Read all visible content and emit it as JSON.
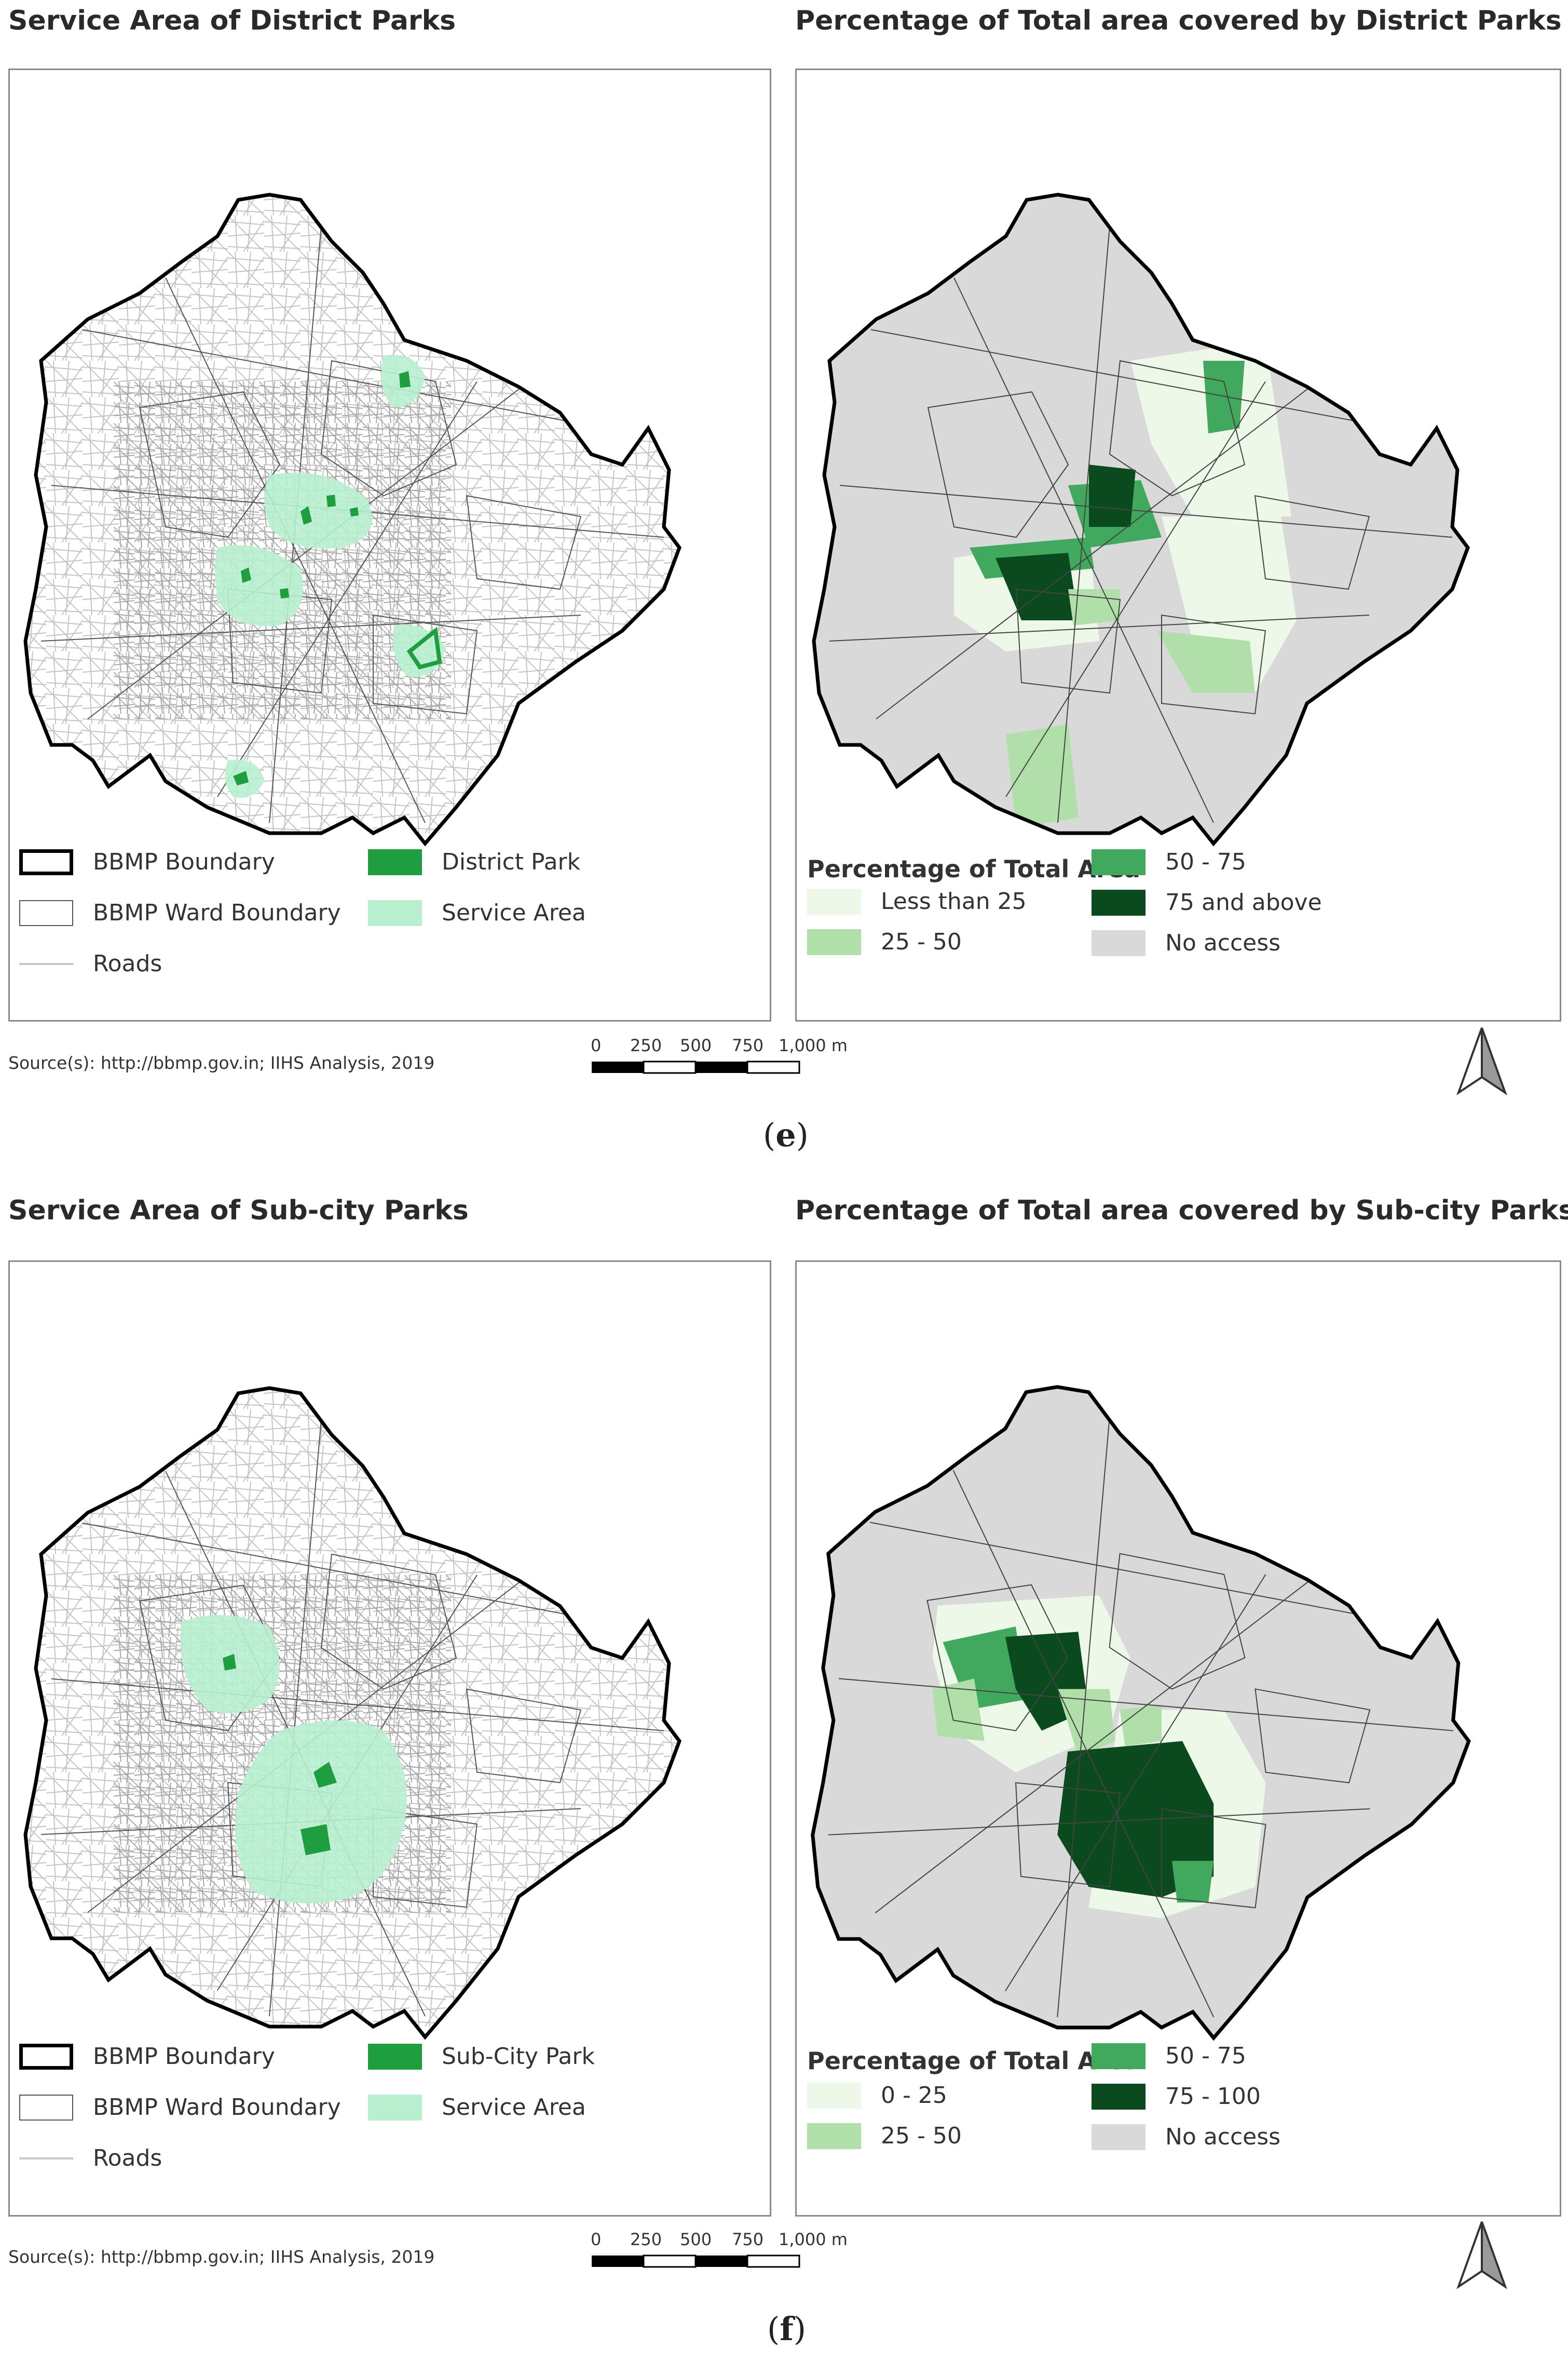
{
  "figure_e": {
    "left_title": "Service Area of District Parks",
    "right_title": "Percentage of Total area covered by District Parks",
    "caption_open": "(",
    "caption_letter": "e",
    "caption_close": ")",
    "left_legend": {
      "boundary": "BBMP Boundary",
      "ward": "BBMP Ward Boundary",
      "roads": "Roads",
      "park": "District Park",
      "service": "Service Area"
    },
    "right_legend": {
      "title": "Percentage of Total Area",
      "c1": "Less than 25",
      "c2": "25 - 50",
      "c3": "50 - 75",
      "c4": "75 and above",
      "c5": "No access"
    }
  },
  "figure_f": {
    "left_title": "Service Area of Sub-city Parks",
    "right_title": "Percentage of Total area covered by Sub-city Parks",
    "caption_open": "(",
    "caption_letter": "f",
    "caption_close": ")",
    "left_legend": {
      "boundary": "BBMP Boundary",
      "ward": "BBMP Ward Boundary",
      "roads": "Roads",
      "park": "Sub-City Park",
      "service": "Service Area"
    },
    "right_legend": {
      "title": "Percentage of Total Area",
      "c1": "0 - 25",
      "c2": "25 - 50",
      "c3": "50 - 75",
      "c4": "75 - 100",
      "c5": "No access"
    }
  },
  "source": "Source(s): http://bbmp.gov.in; IIHS Analysis, 2019",
  "scale_labels": [
    "0",
    "250",
    "500",
    "750",
    "1,000 m"
  ],
  "colors": {
    "boundary": "#000000",
    "ward": "#555555",
    "roads": "#c8c8c8",
    "park": "#1f9e3f",
    "service": "#b8f0cf",
    "c1": "#edf8e9",
    "c2": "#b0dfa9",
    "c3": "#41a95d",
    "c4": "#0a4a1e",
    "no_access": "#d9d9d9"
  }
}
